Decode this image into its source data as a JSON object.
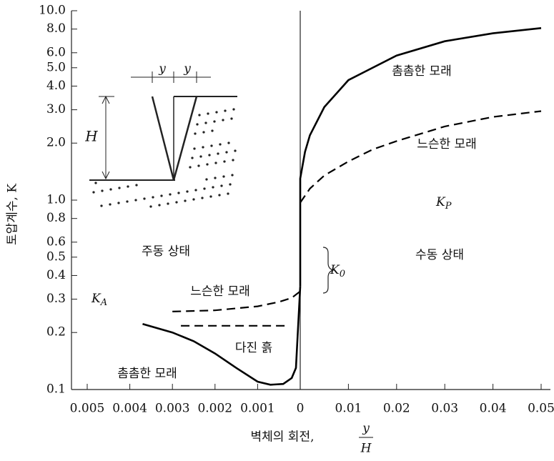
{
  "chart_data": {
    "type": "line",
    "y_log": true,
    "ylabel": "토압계수, K",
    "xlabel": "벽체의 회전,",
    "xlabel_fraction": [
      "y",
      "H"
    ],
    "ylim": [
      0.1,
      10
    ],
    "yticks": [
      0.1,
      0.2,
      0.3,
      0.4,
      0.5,
      0.6,
      0.8,
      {
        "value": 1,
        "label": "1.0"
      },
      {
        "value": 2,
        "label": "2.0"
      },
      {
        "value": 3,
        "label": "3.0"
      },
      {
        "value": 4,
        "label": "4.0"
      },
      {
        "value": 5,
        "label": "5.0"
      },
      {
        "value": 6,
        "label": "6.0"
      },
      {
        "value": 8,
        "label": "8.0"
      },
      {
        "value": 10,
        "label": "10.0"
      }
    ],
    "xaxes": [
      {
        "xlim": [
          0.005,
          0
        ],
        "xticks": [
          0.005,
          0.004,
          0.003,
          0.002,
          0.001
        ]
      },
      {
        "xlim": [
          0,
          0.05
        ],
        "xticks": [
          0,
          0.01,
          0.02,
          0.03,
          0.04,
          0.05
        ]
      }
    ],
    "series": [
      {
        "xaxis": 0,
        "style": "solid",
        "color": "#000000",
        "x": [
          0.0037,
          0.003,
          0.0025,
          0.002,
          0.0015,
          0.001,
          0.0007,
          0.0004,
          0.0002,
          0.0001,
          0
        ],
        "values": [
          0.222,
          0.2,
          0.18,
          0.155,
          0.13,
          0.11,
          0.106,
          0.107,
          0.115,
          0.13,
          0.35
        ]
      },
      {
        "xaxis": 0,
        "style": "dashed",
        "color": "#000000",
        "x": [
          0.003,
          0.002,
          0.001,
          0.0005,
          0.0002,
          0
        ],
        "values": [
          0.258,
          0.262,
          0.275,
          0.29,
          0.305,
          0.33
        ]
      },
      {
        "xaxis": 0,
        "style": "dashed",
        "color": "#000000",
        "x": [
          0.0028,
          0.0003
        ],
        "values": [
          0.217,
          0.217
        ]
      },
      {
        "xaxis": 1,
        "style": "solid",
        "color": "#000000",
        "x": [
          0,
          0,
          0.001,
          0.002,
          0.005,
          0.01,
          0.02,
          0.03,
          0.04,
          0.05
        ],
        "values": [
          0.35,
          1.3,
          1.8,
          2.2,
          3.1,
          4.3,
          5.8,
          6.9,
          7.6,
          8.1
        ]
      },
      {
        "xaxis": 1,
        "style": "dashed",
        "color": "#000000",
        "x": [
          0,
          0.002,
          0.005,
          0.01,
          0.015,
          0.02,
          0.03,
          0.04,
          0.05
        ],
        "values": [
          0.97,
          1.15,
          1.35,
          1.6,
          1.85,
          2.05,
          2.45,
          2.75,
          2.95
        ]
      }
    ],
    "annotations": [
      {
        "text": "촘촘한 모래"
      },
      {
        "text": "느슨한 모래"
      },
      {
        "text": "K",
        "sub": "P"
      },
      {
        "text": "수동 상태"
      },
      {
        "text": "K",
        "sub": "0"
      },
      {
        "text": "주동 상태"
      },
      {
        "text": "느슨한 모래"
      },
      {
        "text": "K",
        "sub": "A"
      },
      {
        "text": "다진 흙"
      },
      {
        "text": "촘촘한 모래"
      }
    ],
    "inset_labels": [
      "y",
      "y",
      "H"
    ]
  }
}
